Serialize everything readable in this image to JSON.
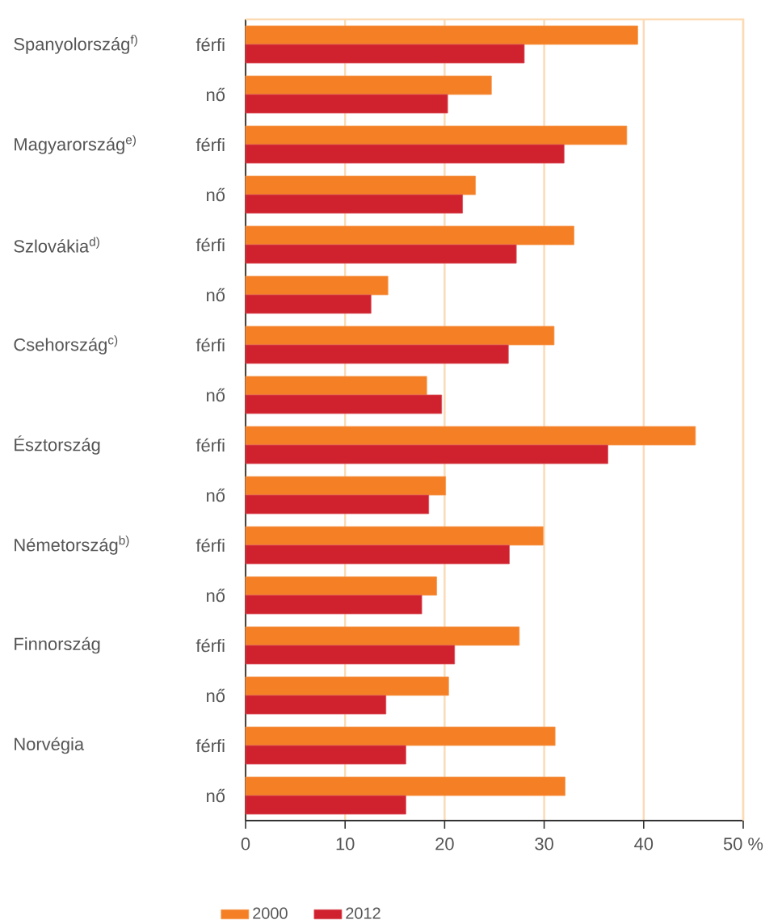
{
  "chart_data": {
    "type": "bar",
    "orientation": "horizontal",
    "categories": [
      "férfi",
      "nő",
      "férfi",
      "nő",
      "férfi",
      "nő",
      "férfi",
      "nő",
      "férfi",
      "nő",
      "férfi",
      "nő",
      "férfi",
      "nő",
      "férfi",
      "nő"
    ],
    "series": [
      {
        "name": "2000",
        "color": "#f47f24",
        "values": [
          39.4,
          24.7,
          38.3,
          23.1,
          33.0,
          14.3,
          31.0,
          18.2,
          45.2,
          20.1,
          29.9,
          19.2,
          27.5,
          20.4,
          31.1,
          32.1
        ]
      },
      {
        "name": "2012",
        "color": "#d0222e",
        "values": [
          28.0,
          20.3,
          32.0,
          21.8,
          27.2,
          12.6,
          26.4,
          19.7,
          36.4,
          18.4,
          26.5,
          17.7,
          21.0,
          14.1,
          16.1,
          16.1
        ]
      }
    ],
    "annotations": [
      "Spanyolország$^{f)}$",
      "Magyarország$^{e)}$",
      "Szlovákia$^{d)}$",
      "Csehország$^{c)}$",
      "Észtország",
      "Németország$^{b)}$",
      "Finnország",
      "Norvégia"
    ],
    "xlim": [
      0,
      50
    ],
    "xticks": [
      0,
      10,
      20,
      30,
      40,
      {
        "value": 50,
        "label": "50 %"
      }
    ],
    "grid": "x",
    "legend": "bottom"
  }
}
